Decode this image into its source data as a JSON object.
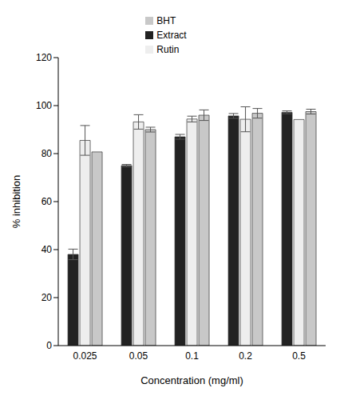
{
  "chart_data": {
    "type": "bar",
    "x_label": "Concentration (mg/ml)",
    "y_label": "% inhibition",
    "categories": [
      "0.025",
      "0.05",
      "0.1",
      "0.2",
      "0.5"
    ],
    "series": [
      {
        "name": "Extract",
        "color": "#222222",
        "values": [
          38,
          75,
          87,
          95.7,
          97.2
        ],
        "errors": [
          2.2,
          0.5,
          1,
          1,
          0.6
        ]
      },
      {
        "name": "Rutin",
        "color": "#eeeeee",
        "values": [
          85.5,
          93.2,
          94.4,
          94.3,
          94.2
        ],
        "errors": [
          6.2,
          3,
          1.2,
          5.2,
          0
        ]
      },
      {
        "name": "BHT",
        "color": "#c8c8c8",
        "values": [
          80.7,
          90,
          96,
          96.8,
          97.5
        ],
        "errors": [
          0,
          1,
          2.2,
          2,
          1
        ]
      }
    ],
    "ylim": [
      0,
      120
    ],
    "yticks": [
      0,
      20,
      40,
      60,
      80,
      100,
      120
    ],
    "grid": false,
    "legend": "upper center"
  }
}
